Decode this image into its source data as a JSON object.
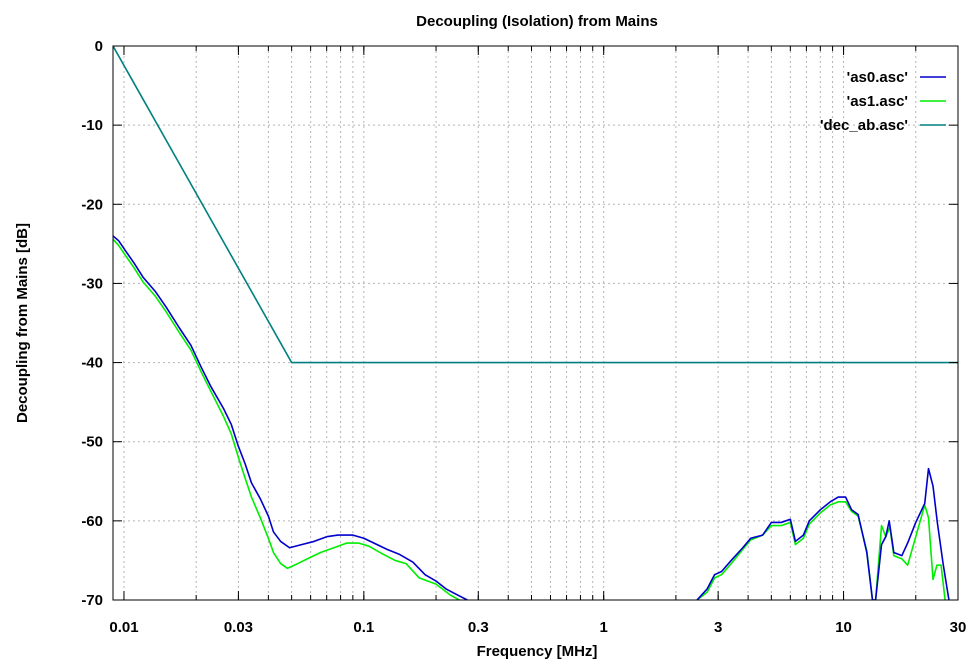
{
  "chart_data": {
    "type": "line",
    "title": "Decoupling (Isolation) from Mains",
    "xlabel": "Frequency [MHz]",
    "ylabel": "Decoupling from Mains [dB]",
    "xscale": "log",
    "xlim": [
      0.009,
      30
    ],
    "ylim": [
      -70,
      0
    ],
    "grid": true,
    "legend_position": "top-right",
    "xticks": [
      {
        "value": 0.01,
        "label": "0.01"
      },
      {
        "value": 0.03,
        "label": "0.03"
      },
      {
        "value": 0.1,
        "label": "0.1"
      },
      {
        "value": 0.3,
        "label": "0.3"
      },
      {
        "value": 1,
        "label": "1"
      },
      {
        "value": 3,
        "label": "3"
      },
      {
        "value": 10,
        "label": "10"
      },
      {
        "value": 30,
        "label": "30"
      }
    ],
    "yticks": [
      {
        "value": 0,
        "label": "0"
      },
      {
        "value": -10,
        "label": "-10"
      },
      {
        "value": -20,
        "label": "-20"
      },
      {
        "value": -30,
        "label": "-30"
      },
      {
        "value": -40,
        "label": "-40"
      },
      {
        "value": -50,
        "label": "-50"
      },
      {
        "value": -60,
        "label": "-60"
      },
      {
        "value": -70,
        "label": "-70"
      }
    ],
    "series": [
      {
        "name": "'as0.asc'",
        "color": "#0000cc",
        "points": [
          [
            0.009,
            -24.0
          ],
          [
            0.0095,
            -24.6
          ],
          [
            0.01,
            -25.6
          ],
          [
            0.011,
            -27.4
          ],
          [
            0.012,
            -29.2
          ],
          [
            0.0135,
            -31.0
          ],
          [
            0.015,
            -33.0
          ],
          [
            0.017,
            -35.6
          ],
          [
            0.019,
            -37.8
          ],
          [
            0.021,
            -40.6
          ],
          [
            0.023,
            -43.0
          ],
          [
            0.026,
            -45.8
          ],
          [
            0.028,
            -47.8
          ],
          [
            0.03,
            -50.6
          ],
          [
            0.032,
            -52.8
          ],
          [
            0.034,
            -55.2
          ],
          [
            0.037,
            -57.2
          ],
          [
            0.04,
            -59.4
          ],
          [
            0.042,
            -61.4
          ],
          [
            0.045,
            -62.6
          ],
          [
            0.049,
            -63.4
          ],
          [
            0.055,
            -63.0
          ],
          [
            0.062,
            -62.6
          ],
          [
            0.07,
            -62.0
          ],
          [
            0.078,
            -61.8
          ],
          [
            0.09,
            -61.8
          ],
          [
            0.1,
            -62.2
          ],
          [
            0.11,
            -62.8
          ],
          [
            0.125,
            -63.6
          ],
          [
            0.14,
            -64.2
          ],
          [
            0.16,
            -65.2
          ],
          [
            0.18,
            -66.8
          ],
          [
            0.2,
            -67.6
          ],
          [
            0.22,
            -68.6
          ],
          [
            0.24,
            -69.2
          ],
          [
            0.27,
            -70.0
          ]
        ]
      },
      {
        "name": "'as1.asc'",
        "color": "#00ee00",
        "points": [
          [
            0.009,
            -24.4
          ],
          [
            0.0095,
            -25.2
          ],
          [
            0.01,
            -26.2
          ],
          [
            0.011,
            -28.0
          ],
          [
            0.012,
            -29.8
          ],
          [
            0.0135,
            -31.6
          ],
          [
            0.015,
            -33.6
          ],
          [
            0.017,
            -36.2
          ],
          [
            0.019,
            -38.4
          ],
          [
            0.021,
            -41.2
          ],
          [
            0.023,
            -43.6
          ],
          [
            0.026,
            -46.8
          ],
          [
            0.028,
            -49.0
          ],
          [
            0.03,
            -52.0
          ],
          [
            0.032,
            -54.6
          ],
          [
            0.034,
            -57.0
          ],
          [
            0.037,
            -59.6
          ],
          [
            0.04,
            -62.2
          ],
          [
            0.042,
            -64.0
          ],
          [
            0.045,
            -65.4
          ],
          [
            0.048,
            -66.0
          ],
          [
            0.053,
            -65.4
          ],
          [
            0.06,
            -64.6
          ],
          [
            0.066,
            -64.0
          ],
          [
            0.075,
            -63.4
          ],
          [
            0.085,
            -62.8
          ],
          [
            0.095,
            -62.8
          ],
          [
            0.105,
            -63.2
          ],
          [
            0.12,
            -64.2
          ],
          [
            0.135,
            -65.0
          ],
          [
            0.15,
            -65.4
          ],
          [
            0.17,
            -67.2
          ],
          [
            0.2,
            -68.0
          ],
          [
            0.23,
            -69.4
          ],
          [
            0.25,
            -70.0
          ]
        ]
      },
      {
        "name": "'dec_ab.asc'",
        "color": "#008080",
        "points": [
          [
            0.009,
            0
          ],
          [
            0.05,
            -40
          ],
          [
            30,
            -40
          ]
        ]
      }
    ],
    "high_frequency_segments": [
      {
        "series": "'as0.asc'",
        "points": [
          [
            2.45,
            -70.0
          ],
          [
            2.7,
            -68.6
          ],
          [
            2.9,
            -66.8
          ],
          [
            3.1,
            -66.4
          ],
          [
            3.4,
            -65.0
          ],
          [
            3.8,
            -63.4
          ],
          [
            4.1,
            -62.2
          ],
          [
            4.6,
            -61.8
          ],
          [
            5.0,
            -60.2
          ],
          [
            5.5,
            -60.2
          ],
          [
            6.0,
            -59.8
          ],
          [
            6.3,
            -62.6
          ],
          [
            6.8,
            -61.8
          ],
          [
            7.2,
            -60.0
          ],
          [
            8.0,
            -58.6
          ],
          [
            8.8,
            -57.6
          ],
          [
            9.5,
            -57.0
          ],
          [
            10.2,
            -57.0
          ],
          [
            10.8,
            -58.6
          ],
          [
            11.5,
            -59.2
          ],
          [
            12.5,
            -64.0
          ],
          [
            13.2,
            -70.0
          ],
          [
            13.6,
            -70.0
          ],
          [
            14.4,
            -63.0
          ],
          [
            15.0,
            -62.0
          ],
          [
            15.5,
            -60.0
          ],
          [
            16.2,
            -64.0
          ],
          [
            17.5,
            -64.4
          ],
          [
            18.5,
            -62.8
          ],
          [
            20.0,
            -60.2
          ],
          [
            21.8,
            -57.8
          ],
          [
            22.6,
            -53.4
          ],
          [
            23.6,
            -55.6
          ],
          [
            24.6,
            -60.2
          ],
          [
            26.0,
            -65.4
          ],
          [
            27.5,
            -70.0
          ]
        ]
      },
      {
        "series": "'as1.asc'",
        "points": [
          [
            2.45,
            -70.0
          ],
          [
            2.7,
            -69.0
          ],
          [
            2.9,
            -67.2
          ],
          [
            3.1,
            -66.8
          ],
          [
            3.4,
            -65.4
          ],
          [
            3.8,
            -63.6
          ],
          [
            4.1,
            -62.4
          ],
          [
            4.6,
            -61.8
          ],
          [
            5.0,
            -60.6
          ],
          [
            5.5,
            -60.6
          ],
          [
            6.0,
            -60.2
          ],
          [
            6.3,
            -63.0
          ],
          [
            6.8,
            -62.2
          ],
          [
            7.2,
            -60.4
          ],
          [
            8.0,
            -59.0
          ],
          [
            8.8,
            -58.0
          ],
          [
            9.5,
            -57.6
          ],
          [
            10.2,
            -57.6
          ],
          [
            10.8,
            -58.8
          ],
          [
            11.5,
            -59.4
          ],
          [
            12.5,
            -63.8
          ],
          [
            13.2,
            -70.0
          ],
          [
            13.6,
            -70.0
          ],
          [
            14.4,
            -60.6
          ],
          [
            15.0,
            -62.0
          ],
          [
            15.6,
            -60.8
          ],
          [
            16.2,
            -64.4
          ],
          [
            17.5,
            -64.8
          ],
          [
            18.5,
            -65.6
          ],
          [
            20.0,
            -62.0
          ],
          [
            21.8,
            -58.0
          ],
          [
            22.6,
            -59.6
          ],
          [
            23.6,
            -67.4
          ],
          [
            24.5,
            -65.6
          ],
          [
            25.5,
            -65.6
          ],
          [
            26.5,
            -70.0
          ]
        ]
      }
    ]
  }
}
